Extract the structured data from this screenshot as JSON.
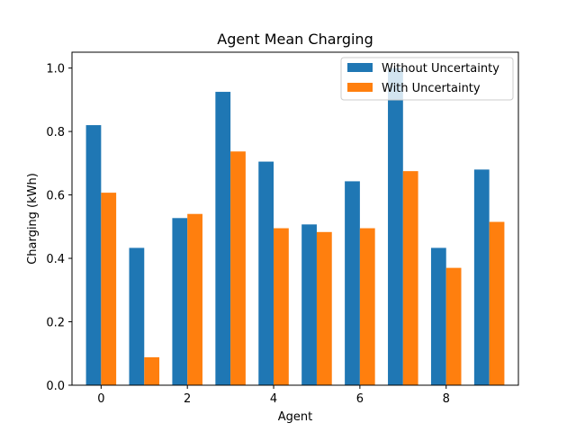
{
  "chart_data": {
    "type": "bar",
    "title": "Agent Mean Charging",
    "xlabel": "Agent",
    "ylabel": "Charging (kWh)",
    "categories": [
      0,
      1,
      2,
      3,
      4,
      5,
      6,
      7,
      8,
      9
    ],
    "x_ticks": [
      0,
      2,
      4,
      6,
      8
    ],
    "y_ticks": [
      0.0,
      0.2,
      0.4,
      0.6,
      0.8,
      1.0
    ],
    "y_tick_labels": [
      "0.0",
      "0.2",
      "0.4",
      "0.6",
      "0.8",
      "1.0"
    ],
    "xlim": [
      -0.675,
      9.675
    ],
    "ylim": [
      0,
      1.05
    ],
    "grid": false,
    "legend_position": "top-right",
    "series": [
      {
        "name": "Without Uncertainty",
        "color": "#1f77b4",
        "values": [
          0.82,
          0.433,
          0.527,
          0.925,
          0.705,
          0.507,
          0.643,
          1.0,
          0.433,
          0.68
        ]
      },
      {
        "name": "With Uncertainty",
        "color": "#ff7f0e",
        "values": [
          0.607,
          0.088,
          0.54,
          0.737,
          0.495,
          0.483,
          0.495,
          0.675,
          0.37,
          0.515
        ]
      }
    ]
  }
}
